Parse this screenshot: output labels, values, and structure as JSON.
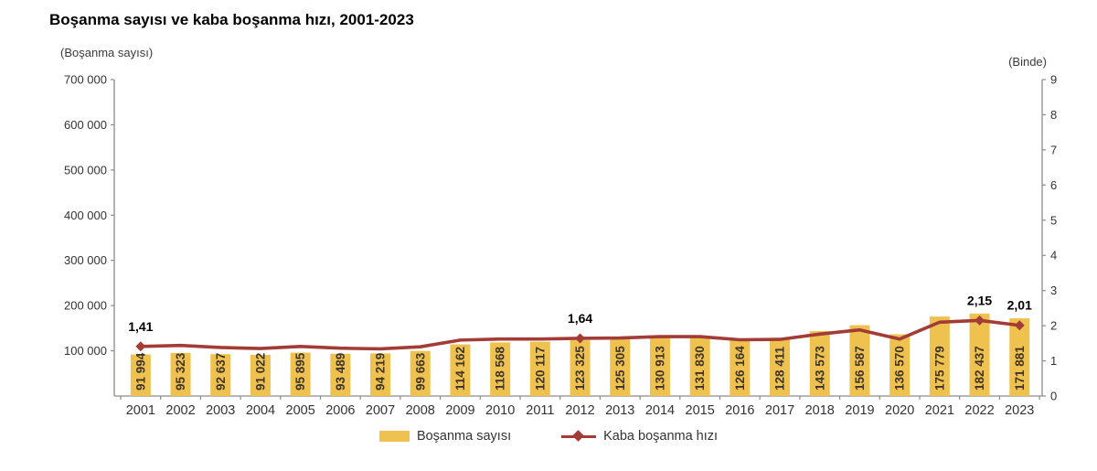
{
  "title": "Boşanma sayısı ve kaba boşanma hızı, 2001-2023",
  "left_axis_caption": "(Boşanma sayısı)",
  "right_axis_caption": "(Binde)",
  "legend": {
    "bar_label": "Boşanma sayısı",
    "line_label": "Kaba boşanma hızı"
  },
  "colors": {
    "bar": "#EFC14F",
    "line": "#A33B36",
    "bar_value_text": "#3E3529",
    "axis": "#8C8C8C",
    "tick_text": "#333333",
    "annotation_text": "#000000"
  },
  "chart_data": {
    "type": "bar",
    "categories": [
      "2001",
      "2002",
      "2003",
      "2004",
      "2005",
      "2006",
      "2007",
      "2008",
      "2009",
      "2010",
      "2011",
      "2012",
      "2013",
      "2014",
      "2015",
      "2016",
      "2017",
      "2018",
      "2019",
      "2020",
      "2021",
      "2022",
      "2023"
    ],
    "series": [
      {
        "name": "Boşanma sayısı",
        "type": "bar",
        "axis": "left",
        "values": [
          91994,
          95323,
          92637,
          91022,
          95895,
          93489,
          94219,
          99663,
          114162,
          118568,
          120117,
          123325,
          125305,
          130913,
          131830,
          126164,
          128411,
          143573,
          156587,
          136570,
          175779,
          182437,
          171881
        ]
      },
      {
        "name": "Kaba boşanma hızı",
        "type": "line",
        "axis": "right",
        "values": [
          1.41,
          1.44,
          1.38,
          1.35,
          1.41,
          1.36,
          1.34,
          1.4,
          1.59,
          1.62,
          1.62,
          1.64,
          1.65,
          1.69,
          1.69,
          1.6,
          1.61,
          1.76,
          1.88,
          1.62,
          2.1,
          2.15,
          2.01
        ],
        "point_labels": {
          "2001": "1,41",
          "2012": "1,64",
          "2022": "2,15",
          "2023": "2,01"
        }
      }
    ],
    "left_axis": {
      "min": 0,
      "max": 700000,
      "tick_step": 100000,
      "zero_labeled": false
    },
    "right_axis": {
      "min": 0,
      "max": 9,
      "tick_step": 1,
      "zero_labeled": true
    },
    "grid": false,
    "legend_position": "bottom"
  }
}
